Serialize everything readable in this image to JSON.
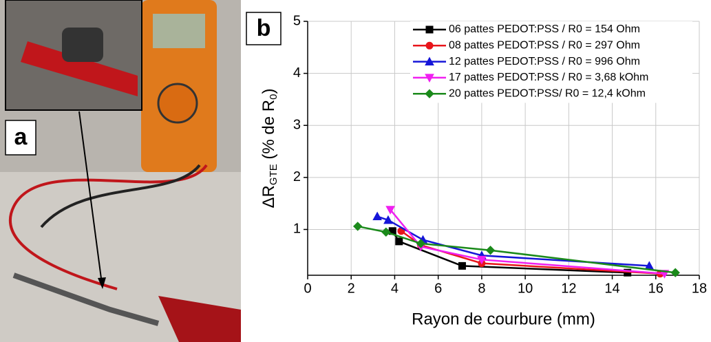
{
  "panel_a": "a",
  "chart_data": {
    "type": "line",
    "panel_label": "b",
    "xlabel": "Rayon de courbure (mm)",
    "ylabel": [
      "ΔR",
      "GTE",
      " (% de R",
      "0",
      ")"
    ],
    "xlim": [
      0,
      18
    ],
    "ylim": [
      0.12,
      5
    ],
    "xticks": [
      0,
      2,
      4,
      6,
      8,
      10,
      12,
      14,
      16,
      18
    ],
    "yticks": [
      1,
      2,
      3,
      4,
      5
    ],
    "grid": true,
    "legend": "upper right",
    "series": [
      {
        "name": "06 pattes PEDOT:PSS / R0 = 154 Ohm",
        "color": "#000000",
        "marker": "square",
        "x": [
          3.9,
          4.2,
          7.1,
          14.7
        ],
        "values": [
          0.97,
          0.77,
          0.3,
          0.17
        ]
      },
      {
        "name": "08 pattes PEDOT:PSS / R0 = 297 Ohm",
        "color": "#e8151b",
        "marker": "circle",
        "x": [
          4.3,
          5.2,
          8.0,
          16.2
        ],
        "values": [
          0.97,
          0.7,
          0.35,
          0.15
        ]
      },
      {
        "name": "12 pattes PEDOT:PSS / R0 = 996 Ohm",
        "color": "#1515d8",
        "marker": "triangle-up",
        "x": [
          3.2,
          3.7,
          5.3,
          8.0,
          15.7
        ],
        "values": [
          1.25,
          1.18,
          0.8,
          0.5,
          0.3
        ]
      },
      {
        "name": "17 pattes PEDOT:PSS / R0 = 3,68 kOhm",
        "color": "#f01ff0",
        "marker": "triangle-down",
        "x": [
          3.8,
          5.2,
          8.0,
          16.4
        ],
        "values": [
          1.38,
          0.67,
          0.42,
          0.15
        ]
      },
      {
        "name": "20 pattes PEDOT:PSS/ R0 = 12,4 kOhm",
        "color": "#1b8a1b",
        "marker": "diamond",
        "x": [
          2.3,
          3.6,
          5.2,
          8.4,
          16.9
        ],
        "values": [
          1.06,
          0.95,
          0.73,
          0.6,
          0.17
        ]
      }
    ]
  }
}
